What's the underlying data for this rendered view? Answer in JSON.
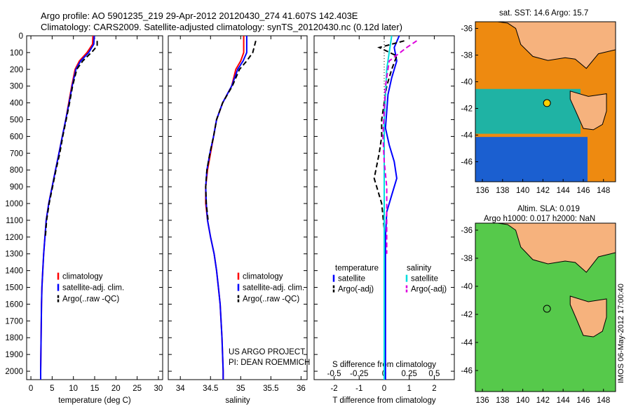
{
  "header": {
    "line1": "Argo profile: AO 5901235_219 29-Apr-2012 20120430_274 41.607S 142.403E",
    "line2": "Climatology: CARS2009. Satellite-adjusted climatology: synTS_20120430.nc (0.12d later)"
  },
  "maps": {
    "sst_title": "sat. SST: 14.6 Argo: 15.7",
    "sla_title1": "Altim. SLA: 0.019",
    "sla_title2": "Argo h1000: 0.017 h2000: NaN",
    "credit": "IMOS 06-May-2012 17:00:40",
    "lon_ticks": [
      "136",
      "138",
      "140",
      "142",
      "144",
      "146",
      "148"
    ],
    "lat_ticks": [
      "-36",
      "-38",
      "-40",
      "-42",
      "-44",
      "-46"
    ],
    "colors": {
      "land": "#f6b27d",
      "ocean_warm": "#ee8a10",
      "ocean_cool": "#1fb3a4",
      "sla_green": "#56c94b"
    }
  },
  "chart_data": [
    {
      "type": "line",
      "xlabel": "temperature (deg C)",
      "ylim": [
        2050,
        0
      ],
      "xlim": [
        -1,
        31
      ],
      "xticks": [
        "0",
        "5",
        "10",
        "15",
        "20",
        "25",
        "30"
      ],
      "yticks": [
        "0",
        "100",
        "200",
        "300",
        "400",
        "500",
        "600",
        "700",
        "800",
        "900",
        "1000",
        "1100",
        "1200",
        "1300",
        "1400",
        "1500",
        "1600",
        "1700",
        "1800",
        "1900",
        "2000"
      ],
      "legend": [
        "climatology",
        "satellite-adj. clim.",
        "Argo(..raw -QC)"
      ],
      "series": [
        {
          "color": "#ff0000",
          "x": [
            14.6,
            14.5,
            13.2,
            11.4,
            10.4,
            9.6,
            8.9,
            8.2,
            7.4,
            6.6,
            5.8,
            5.0,
            4.2,
            3.6,
            3.3,
            3.0,
            2.8,
            2.6,
            2.5,
            2.4,
            2.3,
            2.3
          ],
          "y": [
            0,
            50,
            100,
            150,
            200,
            300,
            400,
            500,
            600,
            700,
            800,
            900,
            1000,
            1100,
            1200,
            1300,
            1400,
            1500,
            1600,
            1800,
            2000,
            2050
          ]
        },
        {
          "color": "#0000ff",
          "x": [
            14.9,
            14.8,
            13.6,
            11.7,
            10.6,
            9.7,
            9.0,
            8.2,
            7.4,
            6.6,
            5.8,
            5.0,
            4.2,
            3.6,
            3.3,
            3.0,
            2.8,
            2.6,
            2.5,
            2.4,
            2.3,
            2.3
          ],
          "y": [
            0,
            50,
            100,
            150,
            200,
            300,
            400,
            500,
            600,
            700,
            800,
            900,
            1000,
            1100,
            1200,
            1300,
            1400,
            1500,
            1600,
            1800,
            2000,
            2050
          ]
        },
        {
          "color": "#000000",
          "x": [
            15.6,
            15.6,
            14.6,
            12.2,
            10.8,
            9.8,
            9.1,
            8.3,
            7.5,
            6.8,
            5.9,
            5.1,
            4.3,
            3.7,
            3.4
          ],
          "y": [
            30,
            60,
            90,
            150,
            200,
            300,
            400,
            500,
            600,
            700,
            800,
            900,
            1000,
            1100,
            1200
          ]
        }
      ]
    },
    {
      "type": "line",
      "xlabel": "salinity",
      "ylim": [
        2050,
        0
      ],
      "xlim": [
        33.8,
        36.1
      ],
      "xticks": [
        "34",
        "34.5",
        "35",
        "35.5",
        "36"
      ],
      "legend": [
        "climatology",
        "satellite-adj. clim.",
        "Argo(..raw -QC)"
      ],
      "annotation": [
        "US ARGO PROJECT",
        "PI: DEAN ROEMMICH"
      ],
      "series": [
        {
          "color": "#ff0000",
          "x": [
            35.05,
            35.05,
            35.0,
            34.92,
            34.85,
            34.7,
            34.6,
            34.55,
            34.5,
            34.45,
            34.42,
            34.42,
            34.45,
            34.5,
            34.56,
            34.6,
            34.63,
            34.66,
            34.69,
            34.71,
            34.71
          ],
          "y": [
            0,
            100,
            150,
            200,
            300,
            400,
            500,
            600,
            700,
            800,
            900,
            1000,
            1100,
            1200,
            1300,
            1400,
            1500,
            1600,
            1800,
            2000,
            2050
          ]
        },
        {
          "color": "#0000ff",
          "x": [
            35.1,
            35.1,
            35.04,
            34.95,
            34.85,
            34.7,
            34.6,
            34.55,
            34.49,
            34.44,
            34.42,
            34.43,
            34.45,
            34.5,
            34.56,
            34.6,
            34.63,
            34.66,
            34.69,
            34.71,
            34.71
          ],
          "y": [
            0,
            100,
            150,
            200,
            300,
            400,
            500,
            600,
            700,
            800,
            900,
            1000,
            1100,
            1200,
            1300,
            1400,
            1500,
            1600,
            1800,
            2000,
            2050
          ]
        },
        {
          "color": "#000000",
          "x": [
            35.25,
            35.2,
            35.1,
            34.98,
            34.86,
            34.7,
            34.6,
            34.55,
            34.49,
            34.44,
            34.42,
            34.43,
            34.46
          ],
          "y": [
            30,
            100,
            150,
            200,
            300,
            400,
            500,
            600,
            700,
            800,
            900,
            1000,
            1100
          ]
        }
      ]
    },
    {
      "type": "line",
      "xlabel": "T difference from climatology",
      "xlabel_top": "S difference from climatology",
      "ylim": [
        2050,
        0
      ],
      "xlim": [
        -2.8,
        2.8
      ],
      "xticks": [
        "-2",
        "-1",
        "0",
        "1",
        "2"
      ],
      "xticks_top": [
        "-0.5",
        "-0.25",
        "0",
        "0.25",
        "0.5"
      ],
      "legend_left_title": "temperature",
      "legend_right_title": "salinity",
      "legend": [
        "satellite",
        "Argo(-adj)",
        "satellite",
        "Argo(-adj)"
      ],
      "series": [
        {
          "name": "T satellite",
          "color": "#0000ff",
          "x": [
            0.6,
            0.4,
            0.5,
            0.3,
            0.15,
            0.1,
            0.05,
            0.2,
            0.4,
            0.5,
            0.3,
            0.1,
            0.05,
            0.05,
            0.05,
            0.05
          ],
          "y": [
            0,
            70,
            150,
            250,
            350,
            450,
            550,
            650,
            750,
            850,
            950,
            1050,
            1200,
            1500,
            1800,
            2050
          ]
        },
        {
          "name": "T Argo",
          "color": "#000000",
          "x": [
            0.8,
            -0.2,
            0.5,
            0.3,
            0.1,
            0.0,
            -0.1,
            -0.1,
            -0.2,
            -0.4,
            -0.1,
            0.0,
            0.0
          ],
          "y": [
            30,
            70,
            120,
            200,
            300,
            400,
            500,
            600,
            700,
            850,
            1000,
            1150,
            1300
          ]
        },
        {
          "name": "S satellite",
          "color": "#00dddd",
          "x": [
            0.3,
            0.2,
            0.1,
            0.05,
            0.0,
            0.0,
            0.0,
            0.0,
            0.0,
            0.0
          ],
          "y": [
            0,
            100,
            200,
            350,
            500,
            700,
            900,
            1200,
            1600,
            2050
          ]
        },
        {
          "name": "S Argo",
          "color": "#dd00dd",
          "x": [
            1.3,
            0.9,
            0.2,
            0.05,
            0.0,
            -0.05,
            0.0,
            0.1,
            0.1,
            0.1
          ],
          "y": [
            30,
            70,
            150,
            300,
            450,
            600,
            750,
            900,
            1100,
            1300
          ]
        }
      ]
    }
  ]
}
